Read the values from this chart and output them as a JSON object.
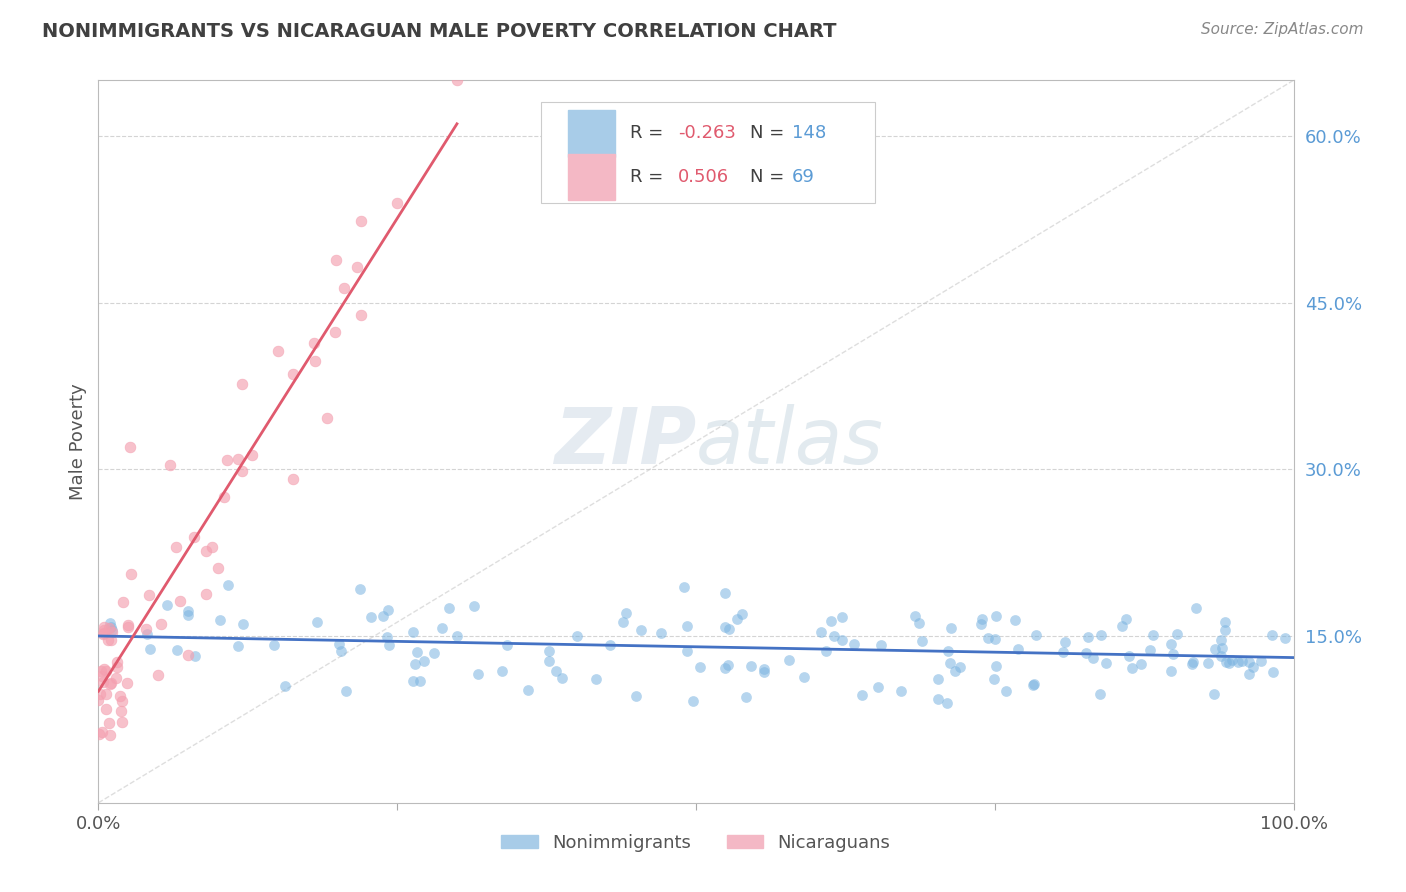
{
  "title": "NONIMMIGRANTS VS NICARAGUAN MALE POVERTY CORRELATION CHART",
  "source_text": "Source: ZipAtlas.com",
  "ylabel": "Male Poverty",
  "r_values": [
    -0.263,
    0.506
  ],
  "n_values": [
    148,
    69
  ],
  "r_color": "#e05a6e",
  "n_color": "#5b9bd5",
  "xlim": [
    0,
    1.0
  ],
  "ylim": [
    0,
    0.65
  ],
  "yticks": [
    0.15,
    0.3,
    0.45,
    0.6
  ],
  "ytick_labels": [
    "15.0%",
    "30.0%",
    "45.0%",
    "60.0%"
  ],
  "grid_color": "#d0d0d0",
  "blue_dot_color": "#7ab3e0",
  "pink_dot_color": "#f4a0b0",
  "blue_line_color": "#4472c4",
  "pink_line_color": "#e05a6e",
  "diag_line_color": "#c8c8c8",
  "background_color": "#ffffff",
  "title_color": "#404040",
  "seed": 7,
  "n_blue": 148,
  "n_pink": 69
}
